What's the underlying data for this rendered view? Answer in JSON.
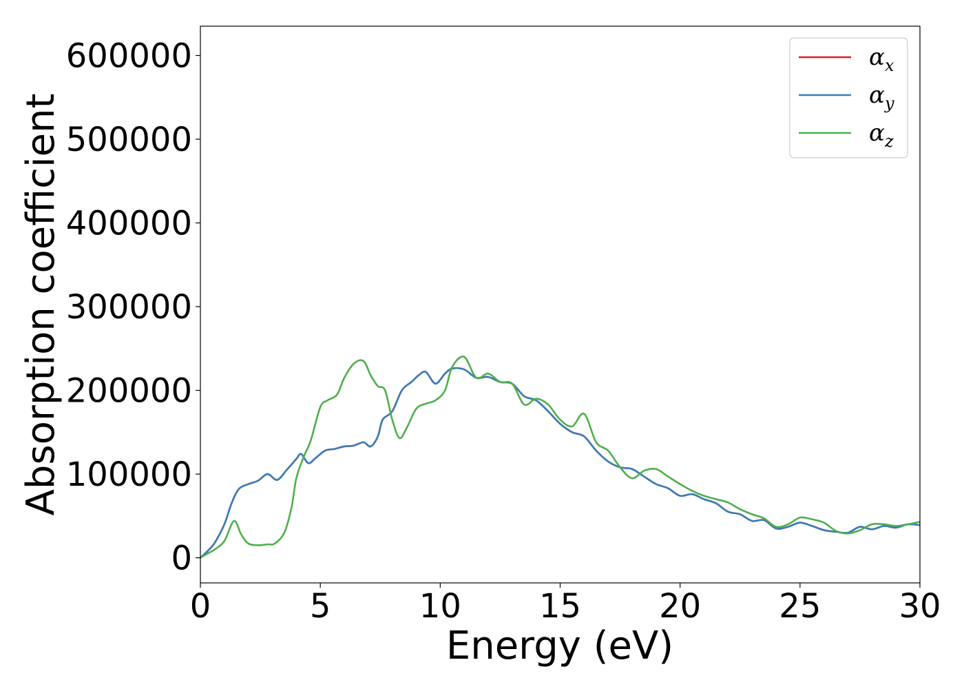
{
  "chart_data": {
    "type": "line",
    "xlabel": "Energy (eV)",
    "ylabel": "Absorption coefficient",
    "xlim": [
      0,
      30
    ],
    "ylim": [
      -30000,
      635000
    ],
    "xticks": [
      0,
      5,
      10,
      15,
      20,
      25,
      30
    ],
    "xtick_labels": [
      "0",
      "5",
      "10",
      "15",
      "20",
      "25",
      "30"
    ],
    "yticks": [
      0,
      100000,
      200000,
      300000,
      400000,
      500000,
      600000
    ],
    "ytick_labels": [
      "0",
      "100000",
      "200000",
      "300000",
      "400000",
      "500000",
      "600000"
    ],
    "grid": false,
    "legend_position": "top-right",
    "legend_entries": [
      {
        "base": "α",
        "sub": "x",
        "color": "#e41a1c"
      },
      {
        "base": "α",
        "sub": "y",
        "color": "#377eb8"
      },
      {
        "base": "α",
        "sub": "z",
        "color": "#4daf4a"
      }
    ],
    "series": [
      {
        "color": "#e41a1c",
        "x": [
          0,
          0.3,
          0.6,
          1,
          1.3,
          1.6,
          2,
          2.4,
          2.8,
          3.2,
          3.6,
          4,
          4.2,
          4.5,
          4.8,
          5.2,
          5.6,
          6,
          6.4,
          6.8,
          7.1,
          7.4,
          7.6,
          8,
          8.4,
          8.8,
          9.1,
          9.4,
          9.8,
          10.2,
          10.5,
          11,
          11.5,
          12,
          12.5,
          13,
          13.5,
          14,
          14.5,
          15,
          15.5,
          16,
          16.5,
          17,
          17.5,
          18,
          18.5,
          19,
          19.5,
          20,
          20.5,
          21,
          21.5,
          22,
          22.5,
          23,
          23.5,
          24,
          24.5,
          25,
          25.5,
          26,
          26.5,
          27,
          27.5,
          28,
          28.5,
          29,
          29.5,
          30
        ],
        "y": [
          0,
          8000,
          18000,
          40000,
          65000,
          82000,
          88000,
          92000,
          100000,
          93000,
          105000,
          118000,
          124000,
          113000,
          119000,
          128000,
          130000,
          133000,
          134000,
          138000,
          133000,
          145000,
          165000,
          175000,
          200000,
          210000,
          218000,
          222000,
          208000,
          220000,
          226000,
          225000,
          215000,
          216000,
          210000,
          208000,
          193000,
          188000,
          175000,
          160000,
          150000,
          145000,
          128000,
          115000,
          108000,
          106000,
          97000,
          88000,
          83000,
          74000,
          76000,
          70000,
          65000,
          55000,
          52000,
          44000,
          45000,
          35000,
          37000,
          42000,
          38000,
          33000,
          31000,
          30000,
          37000,
          34000,
          38000,
          36000,
          40000,
          39000
        ]
      },
      {
        "color": "#377eb8",
        "x": [
          0,
          0.3,
          0.6,
          1,
          1.3,
          1.6,
          2,
          2.4,
          2.8,
          3.2,
          3.6,
          4,
          4.2,
          4.5,
          4.8,
          5.2,
          5.6,
          6,
          6.4,
          6.8,
          7.1,
          7.4,
          7.6,
          8,
          8.4,
          8.8,
          9.1,
          9.4,
          9.8,
          10.2,
          10.5,
          11,
          11.5,
          12,
          12.5,
          13,
          13.5,
          14,
          14.5,
          15,
          15.5,
          16,
          16.5,
          17,
          17.5,
          18,
          18.5,
          19,
          19.5,
          20,
          20.5,
          21,
          21.5,
          22,
          22.5,
          23,
          23.5,
          24,
          24.5,
          25,
          25.5,
          26,
          26.5,
          27,
          27.5,
          28,
          28.5,
          29,
          29.5,
          30
        ],
        "y": [
          0,
          8000,
          18000,
          40000,
          65000,
          82000,
          88000,
          92000,
          100000,
          93000,
          105000,
          118000,
          124000,
          113000,
          119000,
          128000,
          130000,
          133000,
          134000,
          138000,
          133000,
          145000,
          165000,
          175000,
          200000,
          210000,
          218000,
          222000,
          208000,
          220000,
          226000,
          225000,
          215000,
          216000,
          210000,
          208000,
          193000,
          188000,
          175000,
          160000,
          150000,
          145000,
          128000,
          115000,
          108000,
          106000,
          97000,
          88000,
          83000,
          74000,
          76000,
          70000,
          65000,
          55000,
          52000,
          44000,
          45000,
          35000,
          37000,
          42000,
          38000,
          33000,
          31000,
          30000,
          37000,
          34000,
          38000,
          36000,
          40000,
          39000
        ]
      },
      {
        "color": "#4daf4a",
        "x": [
          0,
          0.3,
          0.6,
          1,
          1.4,
          1.7,
          2,
          2.4,
          2.8,
          3.1,
          3.5,
          3.8,
          4,
          4.3,
          4.6,
          5,
          5.3,
          5.7,
          6,
          6.4,
          6.8,
          7.1,
          7.4,
          7.7,
          8,
          8.3,
          8.6,
          9,
          9.4,
          9.8,
          10.2,
          10.5,
          11,
          11.5,
          12,
          12.5,
          13,
          13.5,
          14,
          14.5,
          15,
          15.5,
          16,
          16.5,
          17,
          17.5,
          18,
          18.5,
          19,
          19.5,
          20,
          20.5,
          21,
          21.5,
          22,
          22.5,
          23,
          23.5,
          24,
          24.5,
          25,
          25.5,
          26,
          26.5,
          27,
          27.5,
          28,
          28.5,
          29,
          29.5,
          30
        ],
        "y": [
          0,
          5000,
          10000,
          20000,
          44000,
          28000,
          17000,
          15000,
          16000,
          17000,
          30000,
          60000,
          95000,
          120000,
          140000,
          180000,
          188000,
          195000,
          215000,
          232000,
          235000,
          218000,
          205000,
          200000,
          165000,
          143000,
          155000,
          178000,
          184000,
          188000,
          200000,
          228000,
          240000,
          215000,
          220000,
          210000,
          208000,
          183000,
          190000,
          183000,
          165000,
          157000,
          172000,
          138000,
          128000,
          108000,
          95000,
          104000,
          106000,
          97000,
          88000,
          80000,
          74000,
          70000,
          66000,
          58000,
          52000,
          47000,
          37000,
          40000,
          48000,
          46000,
          42000,
          32000,
          29000,
          33000,
          40000,
          40000,
          38000,
          40000,
          43000
        ]
      }
    ]
  }
}
